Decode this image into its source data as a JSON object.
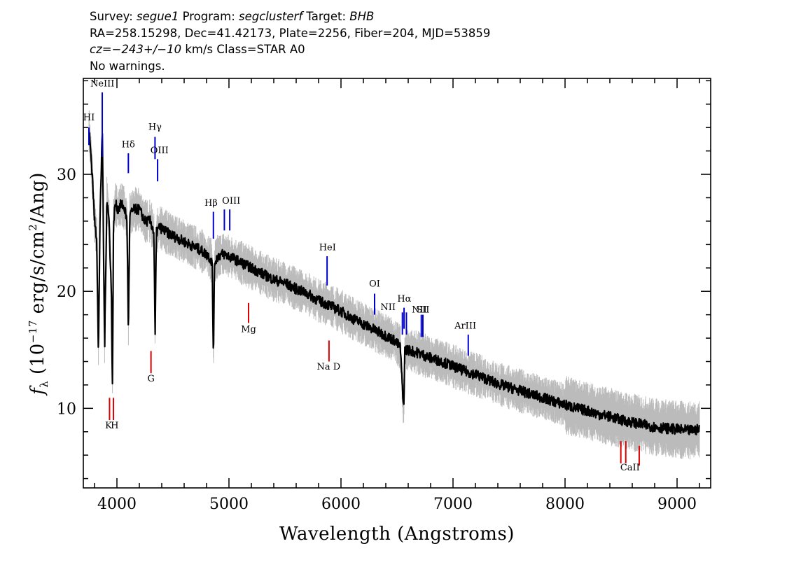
{
  "header": {
    "line1": {
      "survey_label": "Survey: ",
      "survey": "segue1",
      "program_label": " Program: ",
      "program": "segclusterf",
      "target_label": " Target: ",
      "target": "BHB"
    },
    "line2": "RA=258.15298, Dec=41.42173, Plate=2256, Fiber=204, MJD=53859",
    "line3": {
      "cz": "cz=−243+/−10",
      "rest": " km/s Class=STAR A0"
    },
    "line4": "No warnings."
  },
  "colors": {
    "flux": "#000000",
    "error_band": "#bbbbbb",
    "emission": "#0000cc",
    "absorption": "#dd0000",
    "axes": "#000000"
  },
  "chart_data": {
    "type": "line",
    "title": "",
    "xlabel": "Wavelength (Angstroms)",
    "ylabel": "fλ (10⁻¹⁷ erg/s/cm²/Ang)",
    "ylabel_parts": {
      "symbol": "f",
      "subscript": "λ",
      "unit_open": " (10",
      "unit_exp": "−17",
      "unit_mid": " erg/s/cm",
      "unit_exp2": "2",
      "unit_close": "/Ang)"
    },
    "xlim": [
      3700,
      9300
    ],
    "ylim": [
      3.2,
      38.2
    ],
    "xticks": [
      4000,
      5000,
      6000,
      7000,
      8000,
      9000
    ],
    "xtick_labels": [
      "4000",
      "5000",
      "6000",
      "7000",
      "8000",
      "9000"
    ],
    "yticks": [
      10,
      20,
      30
    ],
    "ytick_labels": [
      "10",
      "20",
      "30"
    ],
    "grid": false,
    "series": [
      {
        "role": "flux",
        "x": [
          3750,
          3780,
          3800,
          3820,
          3835,
          3850,
          3870,
          3890,
          3910,
          3930,
          3950,
          3960,
          3970,
          3985,
          4010,
          4040,
          4070,
          4090,
          4102,
          4115,
          4150,
          4200,
          4250,
          4300,
          4330,
          4341,
          4352,
          4380,
          4450,
          4550,
          4650,
          4750,
          4820,
          4850,
          4861,
          4872,
          4900,
          4950,
          5000,
          5100,
          5200,
          5300,
          5400,
          5500,
          5600,
          5700,
          5800,
          5900,
          6000,
          6100,
          6200,
          6300,
          6400,
          6480,
          6530,
          6556,
          6563,
          6570,
          6600,
          6700,
          6800,
          6900,
          7000,
          7100,
          7200,
          7300,
          7400,
          7500,
          7600,
          7700,
          7800,
          7900,
          8000,
          8100,
          8200,
          8300,
          8400,
          8500,
          8600,
          8700,
          8800,
          8900,
          9000,
          9100,
          9200
        ],
        "y": [
          34.0,
          30.0,
          26.0,
          24.5,
          14.5,
          27.0,
          33.5,
          15.0,
          28.0,
          26.0,
          20.0,
          12.0,
          26.0,
          27.5,
          27.0,
          27.5,
          27.0,
          26.0,
          16.5,
          26.5,
          27.0,
          27.0,
          26.0,
          26.0,
          25.0,
          16.0,
          25.0,
          25.5,
          25.0,
          24.5,
          24.0,
          23.5,
          23.0,
          22.5,
          14.5,
          22.5,
          23.0,
          23.2,
          23.0,
          22.5,
          22.0,
          21.5,
          21.0,
          20.7,
          20.2,
          19.8,
          19.2,
          18.8,
          18.3,
          17.7,
          17.2,
          16.7,
          16.2,
          15.8,
          15.2,
          10.2,
          11.0,
          15.0,
          15.0,
          14.7,
          14.3,
          14.0,
          13.6,
          13.2,
          12.9,
          12.5,
          12.1,
          11.8,
          11.5,
          11.2,
          10.9,
          10.6,
          10.3,
          10.0,
          9.8,
          9.5,
          9.3,
          9.0,
          8.8,
          8.6,
          8.4,
          8.3,
          8.2,
          8.1,
          8.2
        ]
      }
    ],
    "spectral_lines": {
      "emission": [
        {
          "label": "NeIII",
          "x": 3869,
          "y1": 37.0,
          "y2": 31.5
        },
        {
          "label": "HI",
          "x": 3750,
          "y1": 34.0,
          "y2": 32.5
        },
        {
          "label": "Hδ",
          "x": 4102,
          "y1": 31.8,
          "y2": 30.1
        },
        {
          "label": "Hγ",
          "x": 4340,
          "y1": 33.2,
          "y2": 31.3
        },
        {
          "label": "OIII",
          "x": 4363,
          "y1": 31.3,
          "y2": 29.4
        },
        {
          "label": "Hβ",
          "x": 4861,
          "y1": 26.8,
          "y2": 24.5
        },
        {
          "label": "OIII",
          "x": 4959,
          "y1": 27.0,
          "y2": 25.2
        },
        {
          "label": "OIII",
          "x": 5007,
          "y1": 27.0,
          "y2": 25.2
        },
        {
          "label": "HeI",
          "x": 5876,
          "y1": 23.0,
          "y2": 20.5
        },
        {
          "label": "OI",
          "x": 6300,
          "y1": 19.8,
          "y2": 18.0
        },
        {
          "label": "NII",
          "x": 6548,
          "y1": 18.2,
          "y2": 16.3
        },
        {
          "label": "Hα",
          "x": 6563,
          "y1": 18.6,
          "y2": 16.8
        },
        {
          "label": "NII",
          "x": 6584,
          "y1": 18.2,
          "y2": 16.3
        },
        {
          "label": "SII",
          "x": 6717,
          "y1": 18.0,
          "y2": 16.1
        },
        {
          "label": "SII",
          "x": 6731,
          "y1": 18.0,
          "y2": 16.1
        },
        {
          "label": "ArIII",
          "x": 7136,
          "y1": 16.3,
          "y2": 14.5
        }
      ],
      "absorption": [
        {
          "label": "K",
          "x": 3934,
          "y1": 10.9,
          "y2": 9.0
        },
        {
          "label": "H",
          "x": 3969,
          "y1": 10.9,
          "y2": 9.0
        },
        {
          "label": "G",
          "x": 4304,
          "y1": 14.9,
          "y2": 13.0
        },
        {
          "label": "Mg",
          "x": 5175,
          "y1": 19.0,
          "y2": 17.3
        },
        {
          "label": "Na D",
          "x": 5893,
          "y1": 15.8,
          "y2": 14.0
        },
        {
          "label": "CaII",
          "x": 8498,
          "y1": 7.2,
          "y2": 5.3
        },
        {
          "label": "CaII",
          "x": 8542,
          "y1": 7.2,
          "y2": 5.3
        },
        {
          "label": "CaII",
          "x": 8662,
          "y1": 6.8,
          "y2": 5.1
        }
      ],
      "labels": [
        {
          "text": "NeIII",
          "x": 3870,
          "y": 37.5,
          "kind": "emission"
        },
        {
          "text": "HI",
          "x": 3750,
          "y": 34.6,
          "kind": "emission"
        },
        {
          "text": "Hδ",
          "x": 4102,
          "y": 32.3,
          "kind": "emission"
        },
        {
          "text": "Hγ",
          "x": 4340,
          "y": 33.8,
          "kind": "emission"
        },
        {
          "text": "OIII",
          "x": 4380,
          "y": 31.8,
          "kind": "emission"
        },
        {
          "text": "Hβ",
          "x": 4840,
          "y": 27.3,
          "kind": "emission"
        },
        {
          "text": "OIII",
          "x": 5020,
          "y": 27.5,
          "kind": "emission"
        },
        {
          "text": "HeI",
          "x": 5880,
          "y": 23.5,
          "kind": "emission"
        },
        {
          "text": "OI",
          "x": 6300,
          "y": 20.4,
          "kind": "emission"
        },
        {
          "text": "NII",
          "x": 6420,
          "y": 18.4,
          "kind": "emission"
        },
        {
          "text": "Hα",
          "x": 6565,
          "y": 19.1,
          "kind": "emission"
        },
        {
          "text": "NII",
          "x": 6700,
          "y": 18.2,
          "kind": "emission"
        },
        {
          "text": "SII",
          "x": 6730,
          "y": 18.2,
          "kind": "emission"
        },
        {
          "text": "ArIII",
          "x": 7110,
          "y": 16.8,
          "kind": "emission"
        },
        {
          "text": "K",
          "x": 3925,
          "y": 8.3,
          "kind": "absorption"
        },
        {
          "text": "H",
          "x": 3980,
          "y": 8.3,
          "kind": "absorption"
        },
        {
          "text": "G",
          "x": 4304,
          "y": 12.3,
          "kind": "absorption"
        },
        {
          "text": "Mg",
          "x": 5175,
          "y": 16.5,
          "kind": "absorption"
        },
        {
          "text": "Na D",
          "x": 5890,
          "y": 13.3,
          "kind": "absorption"
        },
        {
          "text": "CaII",
          "x": 8580,
          "y": 4.7,
          "kind": "absorption"
        }
      ]
    }
  }
}
